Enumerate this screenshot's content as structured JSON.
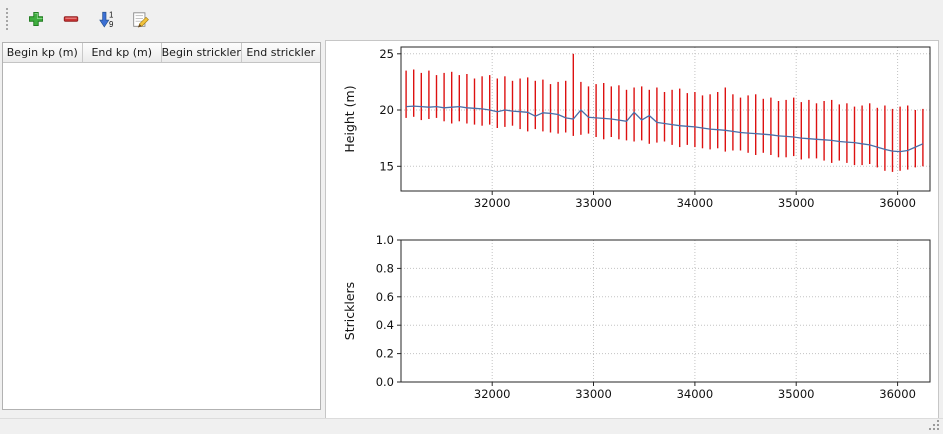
{
  "window": {
    "background": "#f0f0f0"
  },
  "toolbar": {
    "buttons": [
      {
        "name": "add",
        "icon": "plus-icon"
      },
      {
        "name": "remove",
        "icon": "minus-icon"
      },
      {
        "name": "sort-numeric",
        "icon": "sort-numeric-down-icon",
        "digits": [
          "1",
          "9"
        ]
      },
      {
        "name": "edit",
        "icon": "edit-pencil-icon"
      }
    ]
  },
  "table": {
    "columns": [
      "Begin kp (m)",
      "End kp (m)",
      "Begin strickler",
      "End strickler"
    ],
    "rows": []
  },
  "colors": {
    "bars": "#dd1111",
    "profile_line": "#4a6fa8",
    "grid": "#c3c3c3",
    "spine": "#262626",
    "panel_bg": "#ffffff",
    "app_bg": "#f0f0f0",
    "icon_add": "#3fae3f",
    "icon_remove": "#cd3434",
    "icon_sort": "#3b6fd4",
    "icon_edit": "#f2c33c"
  },
  "chart_data": [
    {
      "type": "line",
      "title": "",
      "xlabel": "",
      "ylabel": "Height (m)",
      "xlim": [
        31100,
        36320
      ],
      "ylim": [
        12.8,
        25.6
      ],
      "xticks": [
        32000,
        33000,
        34000,
        35000,
        36000
      ],
      "xtick_labels": [
        "32000",
        "33000",
        "34000",
        "35000",
        "36000"
      ],
      "yticks": [
        15,
        20,
        25
      ],
      "ytick_labels": [
        "15",
        "20",
        "25"
      ],
      "grid": "dotted",
      "legend": false,
      "series": [
        {
          "name": "section-extent-bars",
          "style": "vbars",
          "color": "#dd1111",
          "x": [
            31150,
            31225,
            31300,
            31375,
            31450,
            31525,
            31600,
            31675,
            31750,
            31825,
            31900,
            31975,
            32050,
            32125,
            32200,
            32275,
            32350,
            32425,
            32500,
            32575,
            32650,
            32725,
            32800,
            32875,
            32950,
            33025,
            33100,
            33175,
            33250,
            33325,
            33400,
            33475,
            33550,
            33625,
            33700,
            33775,
            33850,
            33925,
            34000,
            34075,
            34150,
            34225,
            34300,
            34375,
            34450,
            34525,
            34600,
            34675,
            34750,
            34825,
            34900,
            34975,
            35050,
            35125,
            35200,
            35275,
            35350,
            35425,
            35500,
            35575,
            35650,
            35725,
            35800,
            35875,
            35950,
            36025,
            36100,
            36175,
            36250
          ],
          "ymin": [
            19.3,
            19.4,
            19.1,
            19.2,
            19.3,
            19.0,
            18.8,
            19.0,
            18.8,
            18.7,
            18.6,
            18.7,
            18.4,
            18.5,
            18.6,
            18.3,
            18.1,
            18.3,
            18.1,
            18.0,
            17.9,
            18.0,
            17.7,
            17.8,
            17.9,
            17.6,
            17.4,
            17.6,
            17.4,
            17.3,
            17.2,
            17.3,
            17.0,
            17.1,
            17.2,
            16.9,
            16.7,
            16.9,
            16.7,
            16.6,
            16.5,
            16.6,
            16.3,
            16.4,
            16.4,
            16.2,
            16.0,
            16.2,
            16.0,
            15.8,
            15.8,
            15.9,
            15.6,
            15.7,
            15.7,
            15.5,
            15.3,
            15.5,
            15.3,
            15.1,
            15.1,
            15.2,
            14.9,
            14.6,
            14.5,
            14.6,
            14.7,
            14.9,
            15.0
          ],
          "ymax": [
            23.5,
            23.6,
            23.3,
            23.5,
            23.1,
            23.3,
            23.4,
            23.1,
            23.2,
            22.8,
            23.0,
            23.1,
            22.8,
            23.0,
            22.6,
            22.8,
            22.9,
            22.6,
            22.7,
            22.3,
            22.5,
            22.6,
            25.0,
            22.5,
            22.1,
            22.3,
            22.4,
            22.1,
            22.2,
            21.8,
            22.0,
            22.1,
            21.8,
            22.0,
            21.6,
            21.8,
            21.9,
            21.5,
            21.6,
            21.3,
            21.4,
            21.6,
            22.0,
            21.4,
            21.1,
            21.3,
            21.4,
            21.0,
            21.1,
            20.8,
            20.9,
            21.1,
            20.7,
            20.9,
            20.6,
            20.8,
            20.9,
            20.5,
            20.6,
            20.3,
            20.4,
            20.6,
            20.2,
            20.4,
            20.1,
            20.3,
            20.4,
            20.0,
            20.1
          ]
        },
        {
          "name": "mean-bed-profile",
          "style": "line",
          "color": "#4a6fa8",
          "x": [
            31150,
            31225,
            31300,
            31375,
            31450,
            31525,
            31600,
            31675,
            31750,
            31825,
            31900,
            31975,
            32050,
            32125,
            32200,
            32275,
            32350,
            32425,
            32500,
            32575,
            32650,
            32725,
            32800,
            32875,
            32950,
            33025,
            33100,
            33175,
            33250,
            33325,
            33400,
            33475,
            33550,
            33625,
            33700,
            33775,
            33850,
            33925,
            34000,
            34075,
            34150,
            34225,
            34300,
            34375,
            34450,
            34525,
            34600,
            34675,
            34750,
            34825,
            34900,
            34975,
            35050,
            35125,
            35200,
            35275,
            35350,
            35425,
            35500,
            35575,
            35650,
            35725,
            35800,
            35875,
            35950,
            36025,
            36100,
            36175,
            36250
          ],
          "y": [
            20.3,
            20.35,
            20.3,
            20.25,
            20.3,
            20.2,
            20.25,
            20.3,
            20.2,
            20.15,
            20.1,
            20.0,
            19.85,
            20.0,
            19.9,
            19.85,
            19.8,
            19.45,
            19.75,
            19.7,
            19.6,
            19.3,
            19.2,
            20.0,
            19.35,
            19.3,
            19.25,
            19.2,
            19.1,
            19.0,
            19.8,
            19.1,
            19.5,
            18.9,
            18.8,
            18.7,
            18.6,
            18.55,
            18.5,
            18.4,
            18.3,
            18.25,
            18.2,
            18.1,
            18.0,
            17.95,
            17.9,
            17.85,
            17.8,
            17.7,
            17.65,
            17.6,
            17.5,
            17.45,
            17.4,
            17.35,
            17.3,
            17.2,
            17.15,
            17.1,
            17.0,
            16.9,
            16.7,
            16.5,
            16.35,
            16.3,
            16.4,
            16.7,
            17.0
          ]
        }
      ]
    },
    {
      "type": "line",
      "title": "",
      "xlabel": "",
      "ylabel": "Stricklers",
      "xlim": [
        31100,
        36320
      ],
      "ylim": [
        0.0,
        1.0
      ],
      "xticks": [
        32000,
        33000,
        34000,
        35000,
        36000
      ],
      "xtick_labels": [
        "32000",
        "33000",
        "34000",
        "35000",
        "36000"
      ],
      "yticks": [
        0.0,
        0.2,
        0.4,
        0.6,
        0.8,
        1.0
      ],
      "ytick_labels": [
        "0.0",
        "0.2",
        "0.4",
        "0.6",
        "0.8",
        "1.0"
      ],
      "grid": "dotted",
      "legend": false,
      "series": []
    }
  ]
}
